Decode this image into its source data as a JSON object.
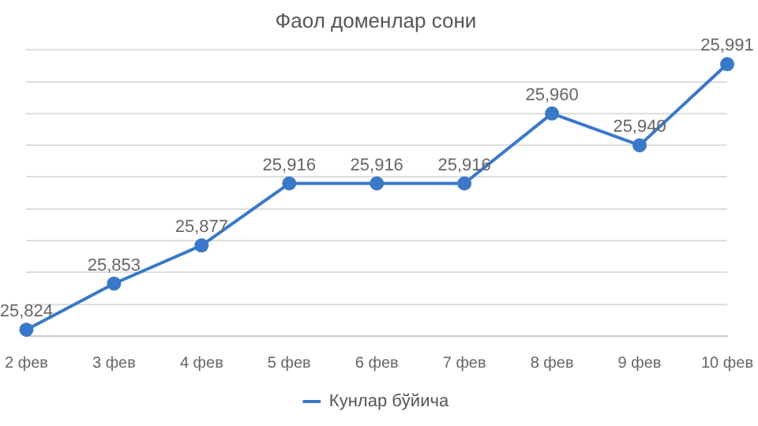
{
  "chart_data": {
    "type": "line",
    "title": "Фаол доменлар сони",
    "categories": [
      "2 фев",
      "3 фев",
      "4 фев",
      "5 фев",
      "6 фев",
      "7 фев",
      "8 фев",
      "9 фев",
      "10 фев"
    ],
    "series": [
      {
        "name": "Кунлар бўйича",
        "color": "#3a78c9",
        "values": [
          25824,
          25853,
          25877,
          25916,
          25916,
          25916,
          25960,
          25940,
          25991
        ],
        "value_labels": [
          "25,824",
          "25,853",
          "25,877",
          "25,916",
          "25,916",
          "25,916",
          "25,960",
          "25,940",
          "25,991"
        ]
      }
    ],
    "tick_labels": "x",
    "grid": "y",
    "legend": "bottom",
    "marker": "circle",
    "line_style": "solid"
  }
}
